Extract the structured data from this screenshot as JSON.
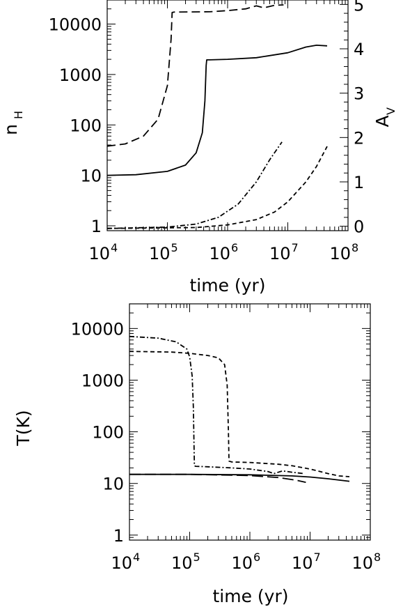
{
  "chart_data": [
    {
      "type": "line",
      "xlabel": "time (yr)",
      "ylabel": "n",
      "ylabel_subscript": "H",
      "y2label": "A",
      "y2label_subscript": "V",
      "xscale": "log",
      "yscale": "log",
      "xlim": [
        10000,
        100000000
      ],
      "ylim": [
        0.8,
        30000
      ],
      "y2lim": [
        -0.1,
        5.1
      ],
      "x_tick_labels": [
        {
          "base": "10",
          "exp": "4",
          "value": 10000
        },
        {
          "base": "10",
          "exp": "5",
          "value": 100000
        },
        {
          "base": "10",
          "exp": "6",
          "value": 1000000
        },
        {
          "base": "10",
          "exp": "7",
          "value": 10000000
        },
        {
          "base": "10",
          "exp": "8",
          "value": 100000000
        }
      ],
      "y_tick_labels": [
        {
          "label": "1",
          "value": 1
        },
        {
          "label": "10",
          "value": 10
        },
        {
          "label": "100",
          "value": 100
        },
        {
          "label": "1000",
          "value": 1000
        },
        {
          "label": "10000",
          "value": 10000
        }
      ],
      "y2_tick_labels": [
        {
          "label": "0",
          "value": 0
        },
        {
          "label": "1",
          "value": 1
        },
        {
          "label": "2",
          "value": 2
        },
        {
          "label": "3",
          "value": 3
        },
        {
          "label": "4",
          "value": 4
        },
        {
          "label": "5",
          "value": 5
        }
      ],
      "series": [
        {
          "style": "solid",
          "axis": "left",
          "x": [
            10000,
            30000,
            100000,
            200000,
            300000,
            380000,
            420000,
            440000,
            450000,
            500000,
            1000000,
            3000000,
            10000000,
            20000000,
            30000000,
            45000000
          ],
          "y": [
            10,
            10.3,
            12,
            16,
            28,
            70,
            300,
            1500,
            1950,
            1950,
            2000,
            2150,
            2700,
            3500,
            3800,
            3700
          ]
        },
        {
          "style": "dashed",
          "axis": "left",
          "x": [
            10000,
            20000,
            40000,
            70000,
            100000,
            115000,
            120000,
            130000,
            500000,
            1000000,
            2000000,
            3000000,
            4000000,
            6000000,
            8500000
          ],
          "y": [
            38,
            42,
            60,
            130,
            600,
            5000,
            17000,
            17300,
            17500,
            18500,
            20000,
            23000,
            21000,
            23500,
            24000
          ]
        },
        {
          "style": "dash-dot",
          "axis": "right",
          "x": [
            10000,
            100000,
            300000,
            700000,
            1500000,
            3000000,
            5000000,
            8000000
          ],
          "y": [
            -0.05,
            -0.02,
            0.05,
            0.2,
            0.5,
            1.0,
            1.5,
            1.9
          ]
        },
        {
          "style": "short-dash",
          "axis": "right",
          "x": [
            10000,
            300000,
            1000000,
            3000000,
            6000000,
            10000000,
            20000000,
            30000000,
            45000000
          ],
          "y": [
            -0.05,
            -0.03,
            0.03,
            0.15,
            0.32,
            0.55,
            1.0,
            1.35,
            1.8
          ]
        }
      ]
    },
    {
      "type": "line",
      "xlabel": "time (yr)",
      "ylabel": "T(K)",
      "xscale": "log",
      "yscale": "log",
      "xlim": [
        10000,
        100000000
      ],
      "ylim": [
        0.8,
        30000
      ],
      "x_tick_labels": [
        {
          "base": "10",
          "exp": "4",
          "value": 10000
        },
        {
          "base": "10",
          "exp": "5",
          "value": 100000
        },
        {
          "base": "10",
          "exp": "6",
          "value": 1000000
        },
        {
          "base": "10",
          "exp": "7",
          "value": 10000000
        },
        {
          "base": "10",
          "exp": "8",
          "value": 100000000
        }
      ],
      "y_tick_labels": [
        {
          "label": "1",
          "value": 1
        },
        {
          "label": "10",
          "value": 10
        },
        {
          "label": "100",
          "value": 100
        },
        {
          "label": "1000",
          "value": 1000
        },
        {
          "label": "10000",
          "value": 10000
        }
      ],
      "series": [
        {
          "style": "solid",
          "x": [
            10000,
            100000,
            1000000,
            5000000,
            10000000,
            20000000,
            45000000
          ],
          "y": [
            15,
            15,
            14.7,
            14,
            13.3,
            12.3,
            11
          ]
        },
        {
          "style": "long-dash",
          "x": [
            10000,
            100000,
            1000000,
            3000000,
            6000000,
            8500000
          ],
          "y": [
            15,
            15,
            14.2,
            13,
            11.5,
            10.5
          ]
        },
        {
          "style": "dash-dot",
          "x": [
            10000,
            30000,
            60000,
            90000,
            100000,
            110000,
            115000,
            118000,
            120000,
            125000,
            200000,
            500000,
            1000000,
            2000000,
            2500000,
            3500000,
            5000000,
            8000000
          ],
          "y": [
            7000,
            6500,
            5500,
            4000,
            2800,
            1200,
            300,
            60,
            22,
            21.5,
            21,
            20,
            19,
            17,
            15.5,
            17.5,
            16.5,
            15.5
          ]
        },
        {
          "style": "short-dash",
          "x": [
            10000,
            50000,
            100000,
            200000,
            300000,
            380000,
            420000,
            440000,
            450000,
            500000,
            1000000,
            3000000,
            5000000,
            10000000,
            20000000,
            30000000,
            45000000
          ],
          "y": [
            3600,
            3500,
            3300,
            3000,
            2700,
            2000,
            800,
            100,
            27,
            26,
            25.5,
            23.5,
            22,
            19,
            15.5,
            14,
            13.5
          ]
        }
      ]
    }
  ]
}
